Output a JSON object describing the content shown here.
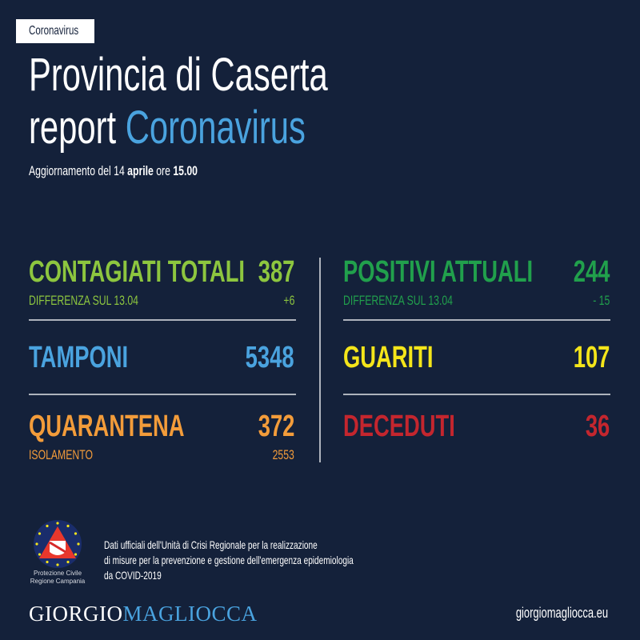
{
  "tag": "Coronavirus",
  "title_line1": "Provincia di Caserta",
  "title_line2_prefix": "report",
  "title_line2_highlight": "Coronavirus",
  "update": {
    "prefix": "Aggiornamento del 14",
    "month": "aprile",
    "middle": "ore",
    "time": "15.00"
  },
  "stats": {
    "contagiati": {
      "label": "CONTAGIATI TOTALI",
      "value": "387",
      "diff_label": "DIFFERENZA SUL 13.04",
      "diff": "+6",
      "color": "#8dc63f"
    },
    "positivi": {
      "label": "POSITIVI ATTUALI",
      "value": "244",
      "diff_label": "DIFFERENZA SUL 13.04",
      "diff": "- 15",
      "color": "#21a04c"
    },
    "tamponi": {
      "label": "TAMPONI",
      "value": "5348",
      "color": "#4aa3df"
    },
    "guariti": {
      "label": "GUARITI",
      "value": "107",
      "color": "#f4e51a"
    },
    "quarantena": {
      "label": "QUARANTENA",
      "value": "372",
      "sub_label": "ISOLAMENTO",
      "sub_value": "2553",
      "color": "#f39c3a"
    },
    "deceduti": {
      "label": "DECEDUTI",
      "value": "36",
      "color": "#c4262e"
    }
  },
  "logo": {
    "line1": "Protezione Civile",
    "line2": "Regione Campania"
  },
  "credit": {
    "line1": "Dati ufficiali dell'Unità di Crisi Regionale per la realizzazione",
    "line2": "di misure per la prevenzione e gestione dell'emergenza epidemiologia",
    "line3": "da COVID-2019"
  },
  "brand": {
    "first": "GIORGIO",
    "last": "MAGLIOCCA"
  },
  "website": "giorgiomagliocca.eu"
}
